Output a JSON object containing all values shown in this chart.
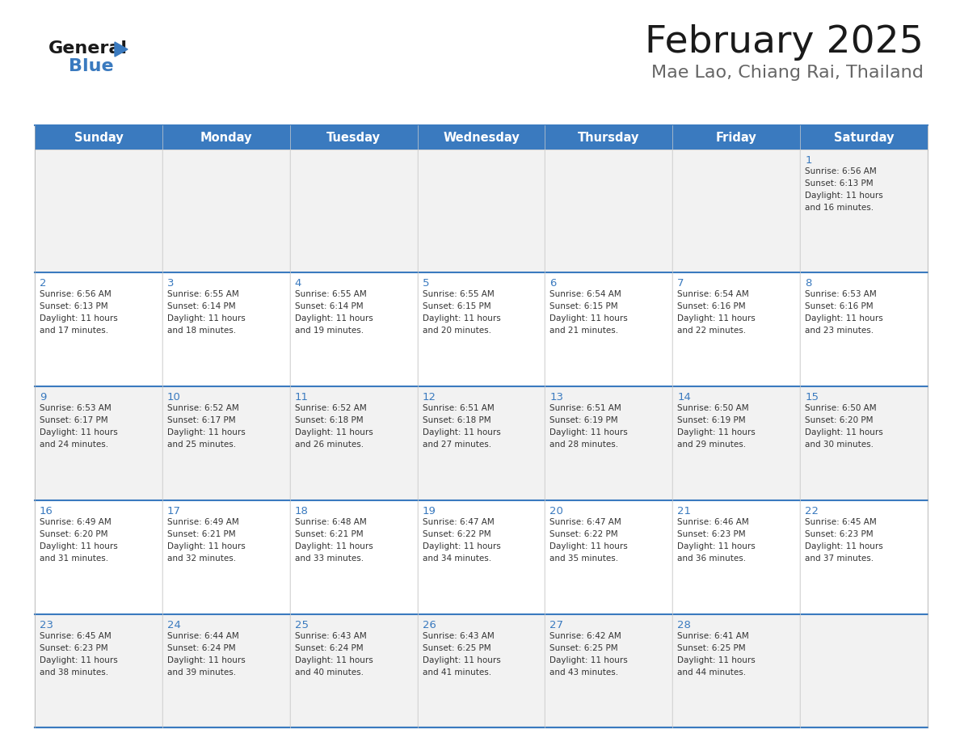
{
  "title": "February 2025",
  "subtitle": "Mae Lao, Chiang Rai, Thailand",
  "header_color": "#3a7abf",
  "header_text_color": "#ffffff",
  "row_bg": [
    "#f2f2f2",
    "#ffffff",
    "#f2f2f2",
    "#ffffff",
    "#f2f2f2"
  ],
  "day_number_color": "#3a7abf",
  "text_color": "#333333",
  "border_color": "#3a7abf",
  "weekdays": [
    "Sunday",
    "Monday",
    "Tuesday",
    "Wednesday",
    "Thursday",
    "Friday",
    "Saturday"
  ],
  "days_data": [
    {
      "day": 1,
      "col": 6,
      "row": 0,
      "sunrise": "6:56 AM",
      "sunset": "6:13 PM",
      "daylight_minutes": "16 minutes."
    },
    {
      "day": 2,
      "col": 0,
      "row": 1,
      "sunrise": "6:56 AM",
      "sunset": "6:13 PM",
      "daylight_minutes": "17 minutes."
    },
    {
      "day": 3,
      "col": 1,
      "row": 1,
      "sunrise": "6:55 AM",
      "sunset": "6:14 PM",
      "daylight_minutes": "18 minutes."
    },
    {
      "day": 4,
      "col": 2,
      "row": 1,
      "sunrise": "6:55 AM",
      "sunset": "6:14 PM",
      "daylight_minutes": "19 minutes."
    },
    {
      "day": 5,
      "col": 3,
      "row": 1,
      "sunrise": "6:55 AM",
      "sunset": "6:15 PM",
      "daylight_minutes": "20 minutes."
    },
    {
      "day": 6,
      "col": 4,
      "row": 1,
      "sunrise": "6:54 AM",
      "sunset": "6:15 PM",
      "daylight_minutes": "21 minutes."
    },
    {
      "day": 7,
      "col": 5,
      "row": 1,
      "sunrise": "6:54 AM",
      "sunset": "6:16 PM",
      "daylight_minutes": "22 minutes."
    },
    {
      "day": 8,
      "col": 6,
      "row": 1,
      "sunrise": "6:53 AM",
      "sunset": "6:16 PM",
      "daylight_minutes": "23 minutes."
    },
    {
      "day": 9,
      "col": 0,
      "row": 2,
      "sunrise": "6:53 AM",
      "sunset": "6:17 PM",
      "daylight_minutes": "24 minutes."
    },
    {
      "day": 10,
      "col": 1,
      "row": 2,
      "sunrise": "6:52 AM",
      "sunset": "6:17 PM",
      "daylight_minutes": "25 minutes."
    },
    {
      "day": 11,
      "col": 2,
      "row": 2,
      "sunrise": "6:52 AM",
      "sunset": "6:18 PM",
      "daylight_minutes": "26 minutes."
    },
    {
      "day": 12,
      "col": 3,
      "row": 2,
      "sunrise": "6:51 AM",
      "sunset": "6:18 PM",
      "daylight_minutes": "27 minutes."
    },
    {
      "day": 13,
      "col": 4,
      "row": 2,
      "sunrise": "6:51 AM",
      "sunset": "6:19 PM",
      "daylight_minutes": "28 minutes."
    },
    {
      "day": 14,
      "col": 5,
      "row": 2,
      "sunrise": "6:50 AM",
      "sunset": "6:19 PM",
      "daylight_minutes": "29 minutes."
    },
    {
      "day": 15,
      "col": 6,
      "row": 2,
      "sunrise": "6:50 AM",
      "sunset": "6:20 PM",
      "daylight_minutes": "30 minutes."
    },
    {
      "day": 16,
      "col": 0,
      "row": 3,
      "sunrise": "6:49 AM",
      "sunset": "6:20 PM",
      "daylight_minutes": "31 minutes."
    },
    {
      "day": 17,
      "col": 1,
      "row": 3,
      "sunrise": "6:49 AM",
      "sunset": "6:21 PM",
      "daylight_minutes": "32 minutes."
    },
    {
      "day": 18,
      "col": 2,
      "row": 3,
      "sunrise": "6:48 AM",
      "sunset": "6:21 PM",
      "daylight_minutes": "33 minutes."
    },
    {
      "day": 19,
      "col": 3,
      "row": 3,
      "sunrise": "6:47 AM",
      "sunset": "6:22 PM",
      "daylight_minutes": "34 minutes."
    },
    {
      "day": 20,
      "col": 4,
      "row": 3,
      "sunrise": "6:47 AM",
      "sunset": "6:22 PM",
      "daylight_minutes": "35 minutes."
    },
    {
      "day": 21,
      "col": 5,
      "row": 3,
      "sunrise": "6:46 AM",
      "sunset": "6:23 PM",
      "daylight_minutes": "36 minutes."
    },
    {
      "day": 22,
      "col": 6,
      "row": 3,
      "sunrise": "6:45 AM",
      "sunset": "6:23 PM",
      "daylight_minutes": "37 minutes."
    },
    {
      "day": 23,
      "col": 0,
      "row": 4,
      "sunrise": "6:45 AM",
      "sunset": "6:23 PM",
      "daylight_minutes": "38 minutes."
    },
    {
      "day": 24,
      "col": 1,
      "row": 4,
      "sunrise": "6:44 AM",
      "sunset": "6:24 PM",
      "daylight_minutes": "39 minutes."
    },
    {
      "day": 25,
      "col": 2,
      "row": 4,
      "sunrise": "6:43 AM",
      "sunset": "6:24 PM",
      "daylight_minutes": "40 minutes."
    },
    {
      "day": 26,
      "col": 3,
      "row": 4,
      "sunrise": "6:43 AM",
      "sunset": "6:25 PM",
      "daylight_minutes": "41 minutes."
    },
    {
      "day": 27,
      "col": 4,
      "row": 4,
      "sunrise": "6:42 AM",
      "sunset": "6:25 PM",
      "daylight_minutes": "43 minutes."
    },
    {
      "day": 28,
      "col": 5,
      "row": 4,
      "sunrise": "6:41 AM",
      "sunset": "6:25 PM",
      "daylight_minutes": "44 minutes."
    }
  ],
  "num_rows": 5,
  "num_cols": 7
}
